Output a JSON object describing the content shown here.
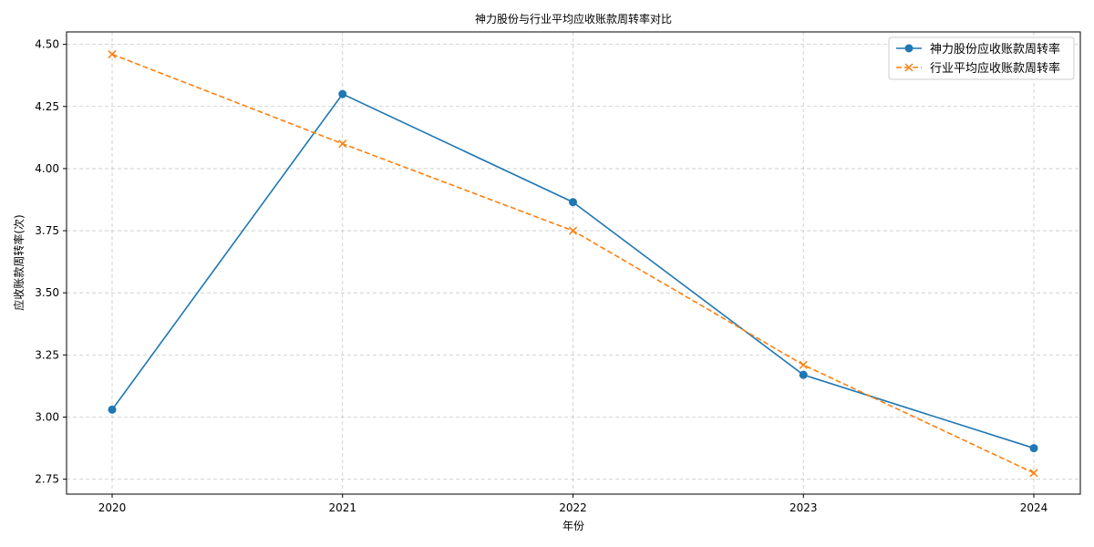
{
  "chart_data": {
    "type": "line",
    "title": "神力股份与行业平均应收账款周转率对比",
    "xlabel": "年份",
    "ylabel": "应收账款周转率(次)",
    "categories": [
      "2020",
      "2021",
      "2022",
      "2023",
      "2024"
    ],
    "y_ticks": [
      "2.75",
      "3.00",
      "3.25",
      "3.50",
      "3.75",
      "4.00",
      "4.25",
      "4.50"
    ],
    "ylim": [
      2.69,
      4.55
    ],
    "grid": true,
    "legend_position": "top-right",
    "series": [
      {
        "name": "神力股份应收账款周转率",
        "values": [
          3.03,
          4.3,
          3.865,
          3.17,
          2.875
        ],
        "color": "#1f77b4",
        "line_style": "solid",
        "marker": "circle"
      },
      {
        "name": "行业平均应收账款周转率",
        "values": [
          4.46,
          4.1,
          3.75,
          3.21,
          2.775
        ],
        "color": "#ff7f0e",
        "line_style": "dashed",
        "marker": "x"
      }
    ]
  }
}
